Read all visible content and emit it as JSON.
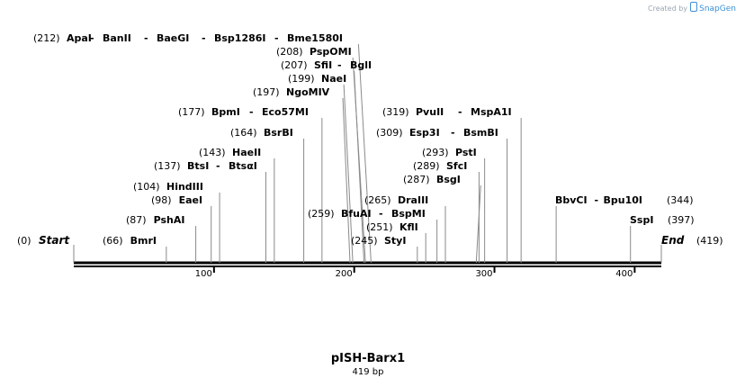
{
  "credit": {
    "prefix": "Created by",
    "brand": "SnapGene",
    "icon": "snapgene-logo-icon"
  },
  "plasmid": {
    "name": "pISH-Barx1",
    "length_label": "419 bp",
    "length": 419
  },
  "ends": {
    "start_label": "Start",
    "start_pos": "(0)",
    "end_label": "End",
    "end_pos": "(419)"
  },
  "colors": {
    "line": "#8a8a8a",
    "backbone": "#000000",
    "text": "#000000",
    "credit": "#9aa6b2",
    "brand": "#3b8fd6"
  },
  "ticks": [
    {
      "value": 100,
      "label": "100"
    },
    {
      "value": 200,
      "label": "200"
    },
    {
      "value": 300,
      "label": "300"
    },
    {
      "value": 400,
      "label": "400"
    }
  ],
  "sites": [
    {
      "pos": "(212)",
      "names": [
        "ApaI",
        "BanII",
        "BaeGI",
        "Bsp1286I",
        "Bme1580I"
      ],
      "cut": 212
    },
    {
      "pos": "(208)",
      "names": [
        "PspOMI"
      ],
      "cut": 208
    },
    {
      "pos": "(207)",
      "names": [
        "SfiI",
        "BglI"
      ],
      "cut": 207
    },
    {
      "pos": "(199)",
      "names": [
        "NaeI"
      ],
      "cut": 199
    },
    {
      "pos": "(197)",
      "names": [
        "NgoMIV"
      ],
      "cut": 197
    },
    {
      "pos": "(177)",
      "names": [
        "BpmI",
        "Eco57MI"
      ],
      "cut": 177
    },
    {
      "pos": "(164)",
      "names": [
        "BsrBI"
      ],
      "cut": 164
    },
    {
      "pos": "(143)",
      "names": [
        "HaeII"
      ],
      "cut": 143
    },
    {
      "pos": "(137)",
      "names": [
        "BtsI",
        "BtsαI"
      ],
      "cut": 137
    },
    {
      "pos": "(104)",
      "names": [
        "HindIII"
      ],
      "cut": 104
    },
    {
      "pos": "(98)",
      "names": [
        "EaeI"
      ],
      "cut": 98
    },
    {
      "pos": "(87)",
      "names": [
        "PshAI"
      ],
      "cut": 87
    },
    {
      "pos": "(66)",
      "names": [
        "BmrI"
      ],
      "cut": 66
    },
    {
      "pos": "(319)",
      "names": [
        "PvuII",
        "MspA1I"
      ],
      "cut": 319
    },
    {
      "pos": "(309)",
      "names": [
        "Esp3I",
        "BsmBI"
      ],
      "cut": 309
    },
    {
      "pos": "(293)",
      "names": [
        "PstI"
      ],
      "cut": 293
    },
    {
      "pos": "(289)",
      "names": [
        "SfcI"
      ],
      "cut": 289
    },
    {
      "pos": "(287)",
      "names": [
        "BsgI"
      ],
      "cut": 287
    },
    {
      "pos": "(265)",
      "names": [
        "DraIII"
      ],
      "cut": 265
    },
    {
      "pos": "(259)",
      "names": [
        "BfuAI",
        "BspMI"
      ],
      "cut": 259
    },
    {
      "pos": "(251)",
      "names": [
        "KflI"
      ],
      "cut": 251
    },
    {
      "pos": "(245)",
      "names": [
        "StyI"
      ],
      "cut": 245
    },
    {
      "pos": "(344)",
      "names": [
        "BbvCI",
        "Bpu10I"
      ],
      "cut": 344
    },
    {
      "pos": "(397)",
      "names": [
        "SspI"
      ],
      "cut": 397
    }
  ]
}
